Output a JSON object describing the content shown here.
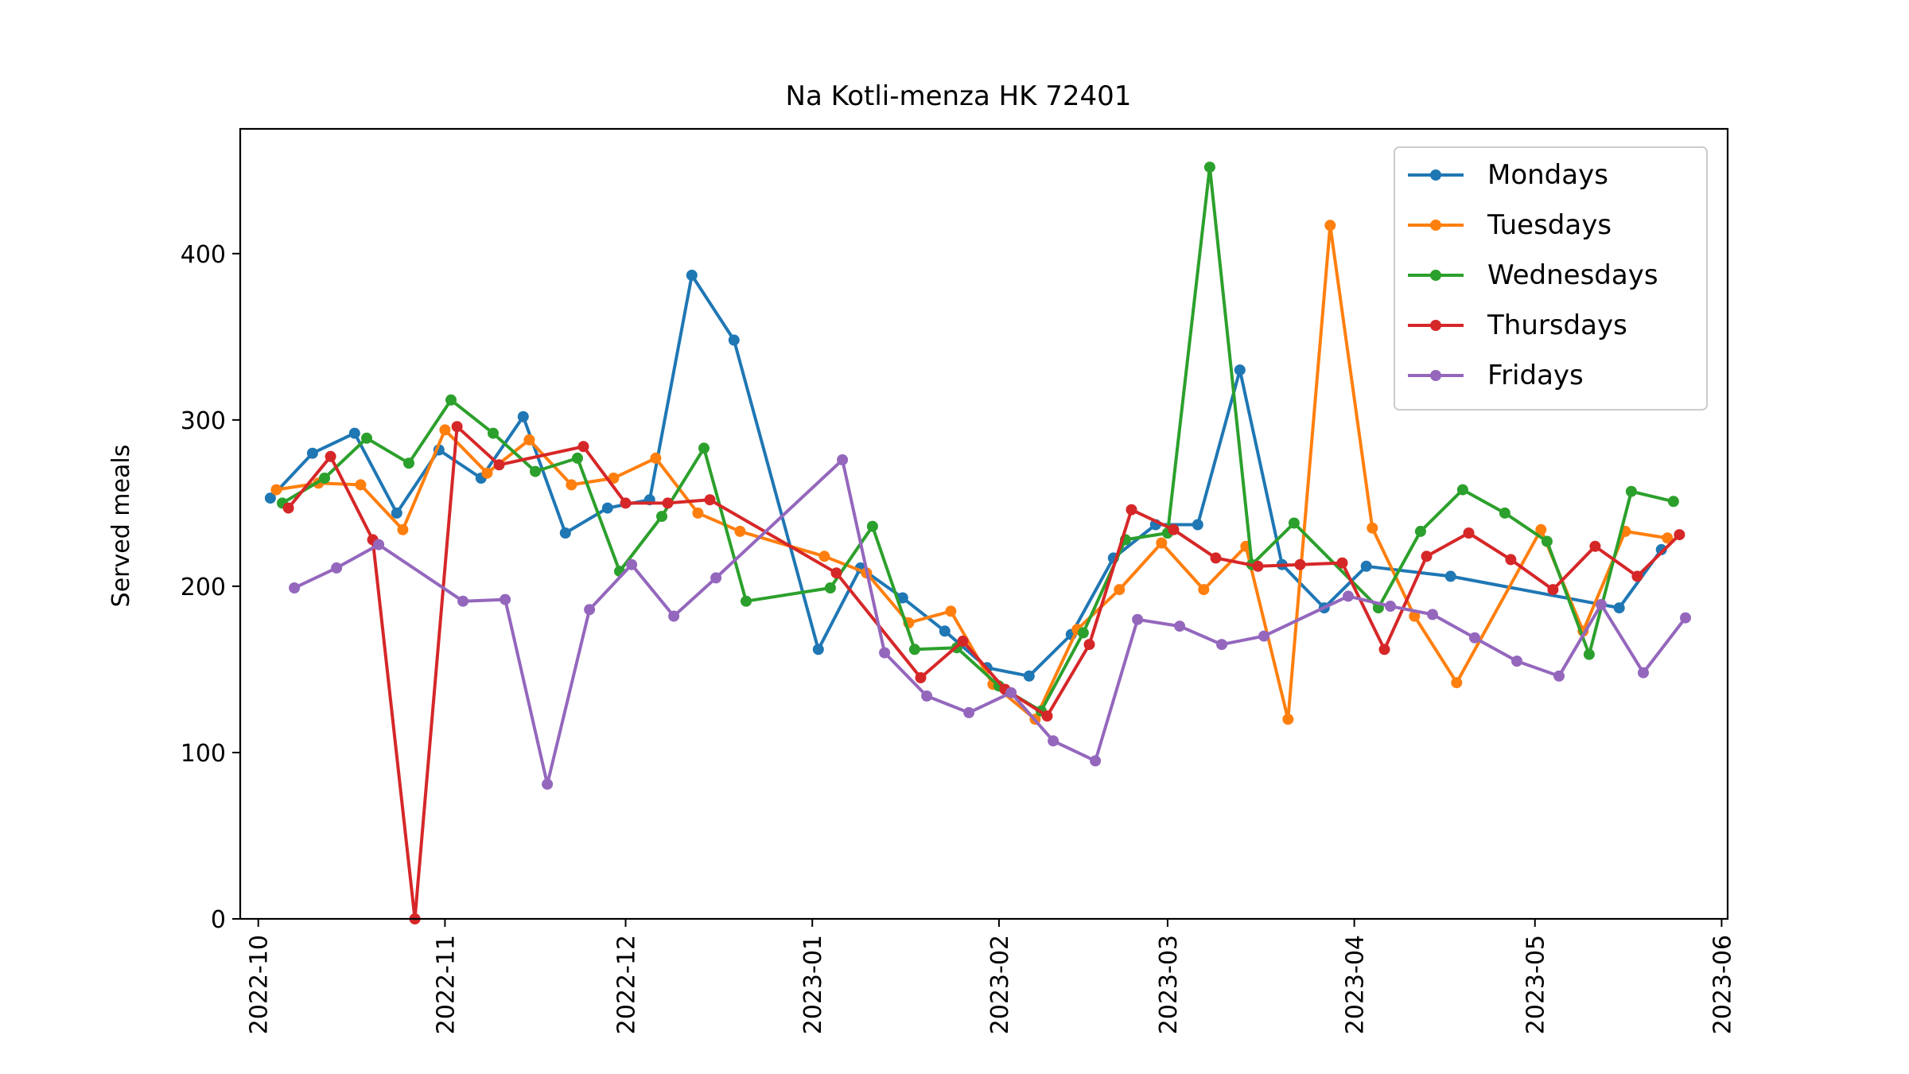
{
  "chart_data": {
    "type": "line",
    "title": "Na Kotli-menza HK 72401",
    "xlabel": "",
    "ylabel": "Served meals",
    "xlim": [
      "2022-09-28",
      "2023-06-02"
    ],
    "ylim": [
      0,
      475
    ],
    "yticks": [
      0,
      100,
      200,
      300,
      400
    ],
    "xticks": [
      "2022-10-01",
      "2022-11-01",
      "2022-12-01",
      "2023-01-01",
      "2023-02-01",
      "2023-03-01",
      "2023-04-01",
      "2023-05-01",
      "2023-06-01"
    ],
    "xtick_labels": [
      "2022-10",
      "2022-11",
      "2022-12",
      "2023-01",
      "2023-02",
      "2023-03",
      "2023-04",
      "2023-05",
      "2023-06"
    ],
    "grid": false,
    "legend_position": "top-right",
    "series": [
      {
        "name": "Mondays",
        "color": "#1f77b4",
        "points": [
          [
            "2022-10-03",
            253
          ],
          [
            "2022-10-10",
            280
          ],
          [
            "2022-10-17",
            292
          ],
          [
            "2022-10-24",
            244
          ],
          [
            "2022-10-31",
            282
          ],
          [
            "2022-11-07",
            265
          ],
          [
            "2022-11-14",
            302
          ],
          [
            "2022-11-21",
            232
          ],
          [
            "2022-11-28",
            247
          ],
          [
            "2022-12-05",
            252
          ],
          [
            "2022-12-12",
            387
          ],
          [
            "2022-12-19",
            348
          ],
          [
            "2023-01-02",
            162
          ],
          [
            "2023-01-09",
            211
          ],
          [
            "2023-01-16",
            193
          ],
          [
            "2023-01-23",
            173
          ],
          [
            "2023-01-30",
            151
          ],
          [
            "2023-02-06",
            146
          ],
          [
            "2023-02-13",
            171
          ],
          [
            "2023-02-20",
            217
          ],
          [
            "2023-02-27",
            237
          ],
          [
            "2023-03-06",
            237
          ],
          [
            "2023-03-13",
            330
          ],
          [
            "2023-03-20",
            213
          ],
          [
            "2023-03-27",
            187
          ],
          [
            "2023-04-03",
            212
          ],
          [
            "2023-04-17",
            206
          ],
          [
            "2023-05-15",
            187
          ],
          [
            "2023-05-22",
            222
          ]
        ]
      },
      {
        "name": "Tuesdays",
        "color": "#ff7f0e",
        "points": [
          [
            "2022-10-04",
            258
          ],
          [
            "2022-10-11",
            262
          ],
          [
            "2022-10-18",
            261
          ],
          [
            "2022-10-25",
            234
          ],
          [
            "2022-11-01",
            294
          ],
          [
            "2022-11-08",
            268
          ],
          [
            "2022-11-15",
            288
          ],
          [
            "2022-11-22",
            261
          ],
          [
            "2022-11-29",
            265
          ],
          [
            "2022-12-06",
            277
          ],
          [
            "2022-12-13",
            244
          ],
          [
            "2022-12-20",
            233
          ],
          [
            "2023-01-03",
            218
          ],
          [
            "2023-01-10",
            208
          ],
          [
            "2023-01-17",
            178
          ],
          [
            "2023-01-24",
            185
          ],
          [
            "2023-01-31",
            141
          ],
          [
            "2023-02-07",
            120
          ],
          [
            "2023-02-14",
            174
          ],
          [
            "2023-02-21",
            198
          ],
          [
            "2023-02-28",
            226
          ],
          [
            "2023-03-07",
            198
          ],
          [
            "2023-03-14",
            224
          ],
          [
            "2023-03-21",
            120
          ],
          [
            "2023-03-28",
            417
          ],
          [
            "2023-04-04",
            235
          ],
          [
            "2023-04-11",
            182
          ],
          [
            "2023-04-18",
            142
          ],
          [
            "2023-05-02",
            234
          ],
          [
            "2023-05-09",
            173
          ],
          [
            "2023-05-16",
            233
          ],
          [
            "2023-05-23",
            229
          ]
        ]
      },
      {
        "name": "Wednesdays",
        "color": "#2ca02c",
        "points": [
          [
            "2022-10-05",
            250
          ],
          [
            "2022-10-12",
            265
          ],
          [
            "2022-10-19",
            289
          ],
          [
            "2022-10-26",
            274
          ],
          [
            "2022-11-02",
            312
          ],
          [
            "2022-11-09",
            292
          ],
          [
            "2022-11-16",
            269
          ],
          [
            "2022-11-23",
            277
          ],
          [
            "2022-11-30",
            209
          ],
          [
            "2022-12-07",
            242
          ],
          [
            "2022-12-14",
            283
          ],
          [
            "2022-12-21",
            191
          ],
          [
            "2023-01-04",
            199
          ],
          [
            "2023-01-11",
            236
          ],
          [
            "2023-01-18",
            162
          ],
          [
            "2023-01-25",
            163
          ],
          [
            "2023-02-01",
            140
          ],
          [
            "2023-02-08",
            125
          ],
          [
            "2023-02-15",
            172
          ],
          [
            "2023-02-22",
            228
          ],
          [
            "2023-03-01",
            232
          ],
          [
            "2023-03-08",
            452
          ],
          [
            "2023-03-15",
            213
          ],
          [
            "2023-03-22",
            238
          ],
          [
            "2023-04-05",
            187
          ],
          [
            "2023-04-12",
            233
          ],
          [
            "2023-04-19",
            258
          ],
          [
            "2023-04-26",
            244
          ],
          [
            "2023-05-03",
            227
          ],
          [
            "2023-05-10",
            159
          ],
          [
            "2023-05-17",
            257
          ],
          [
            "2023-05-24",
            251
          ]
        ]
      },
      {
        "name": "Thursdays",
        "color": "#d62728",
        "points": [
          [
            "2022-10-06",
            247
          ],
          [
            "2022-10-13",
            278
          ],
          [
            "2022-10-20",
            228
          ],
          [
            "2022-10-27",
            0
          ],
          [
            "2022-11-03",
            296
          ],
          [
            "2022-11-10",
            273
          ],
          [
            "2022-11-24",
            284
          ],
          [
            "2022-12-01",
            250
          ],
          [
            "2022-12-08",
            250
          ],
          [
            "2022-12-15",
            252
          ],
          [
            "2023-01-05",
            208
          ],
          [
            "2023-01-19",
            145
          ],
          [
            "2023-01-26",
            167
          ],
          [
            "2023-02-02",
            138
          ],
          [
            "2023-02-09",
            122
          ],
          [
            "2023-02-16",
            165
          ],
          [
            "2023-02-23",
            246
          ],
          [
            "2023-03-02",
            234
          ],
          [
            "2023-03-09",
            217
          ],
          [
            "2023-03-16",
            212
          ],
          [
            "2023-03-23",
            213
          ],
          [
            "2023-03-30",
            214
          ],
          [
            "2023-04-06",
            162
          ],
          [
            "2023-04-13",
            218
          ],
          [
            "2023-04-20",
            232
          ],
          [
            "2023-04-27",
            216
          ],
          [
            "2023-05-04",
            198
          ],
          [
            "2023-05-11",
            224
          ],
          [
            "2023-05-18",
            206
          ],
          [
            "2023-05-25",
            231
          ]
        ]
      },
      {
        "name": "Fridays",
        "color": "#9467bd",
        "points": [
          [
            "2022-10-07",
            199
          ],
          [
            "2022-10-14",
            211
          ],
          [
            "2022-10-21",
            225
          ],
          [
            "2022-11-04",
            191
          ],
          [
            "2022-11-11",
            192
          ],
          [
            "2022-11-18",
            81
          ],
          [
            "2022-11-25",
            186
          ],
          [
            "2022-12-02",
            213
          ],
          [
            "2022-12-09",
            182
          ],
          [
            "2022-12-16",
            205
          ],
          [
            "2023-01-06",
            276
          ],
          [
            "2023-01-13",
            160
          ],
          [
            "2023-01-20",
            134
          ],
          [
            "2023-01-27",
            124
          ],
          [
            "2023-02-03",
            136
          ],
          [
            "2023-02-10",
            107
          ],
          [
            "2023-02-17",
            95
          ],
          [
            "2023-02-24",
            180
          ],
          [
            "2023-03-03",
            176
          ],
          [
            "2023-03-10",
            165
          ],
          [
            "2023-03-17",
            170
          ],
          [
            "2023-03-31",
            194
          ],
          [
            "2023-04-07",
            188
          ],
          [
            "2023-04-14",
            183
          ],
          [
            "2023-04-21",
            169
          ],
          [
            "2023-04-28",
            155
          ],
          [
            "2023-05-05",
            146
          ],
          [
            "2023-05-12",
            189
          ],
          [
            "2023-05-19",
            148
          ],
          [
            "2023-05-26",
            181
          ]
        ]
      }
    ]
  }
}
